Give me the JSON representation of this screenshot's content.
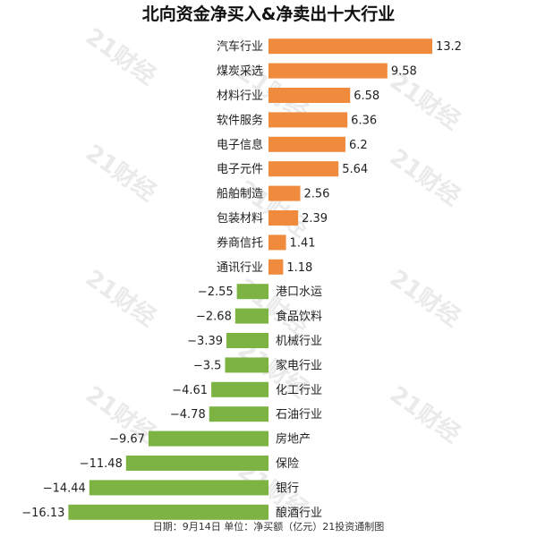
{
  "chart_data": {
    "type": "bar",
    "orientation": "horizontal",
    "title": "北向资金净买入&净卖出十大行业",
    "categories": [
      "汽车行业",
      "煤炭采选",
      "材料行业",
      "软件服务",
      "电子信息",
      "电子元件",
      "船舶制造",
      "包装材料",
      "券商信托",
      "通讯行业",
      "港口水运",
      "食品饮料",
      "机械行业",
      "家电行业",
      "化工行业",
      "石油行业",
      "房地产",
      "保险",
      "银行",
      "酿酒行业"
    ],
    "values": [
      13.2,
      9.58,
      6.58,
      6.36,
      6.2,
      5.64,
      2.56,
      2.39,
      1.41,
      1.18,
      -2.55,
      -2.68,
      -3.39,
      -3.5,
      -4.61,
      -4.78,
      -9.67,
      -11.48,
      -14.44,
      -16.13
    ],
    "value_labels": [
      "13.2",
      "9.58",
      "6.58",
      "6.36",
      "6.2",
      "5.64",
      "2.56",
      "2.39",
      "1.41",
      "1.18",
      "−2.55",
      "−2.68",
      "−3.39",
      "−3.5",
      "−4.61",
      "−4.78",
      "−9.67",
      "−11.48",
      "−14.44",
      "−16.13"
    ],
    "xlim": [
      -16.13,
      13.2
    ],
    "colors": {
      "positive": "#f08a3c",
      "negative": "#7cb342"
    },
    "grid": false,
    "legend": "none",
    "footer": "日期：9月14日 单位：净买额（亿元）21投资通制图"
  },
  "watermark": {
    "text": "21财经"
  }
}
